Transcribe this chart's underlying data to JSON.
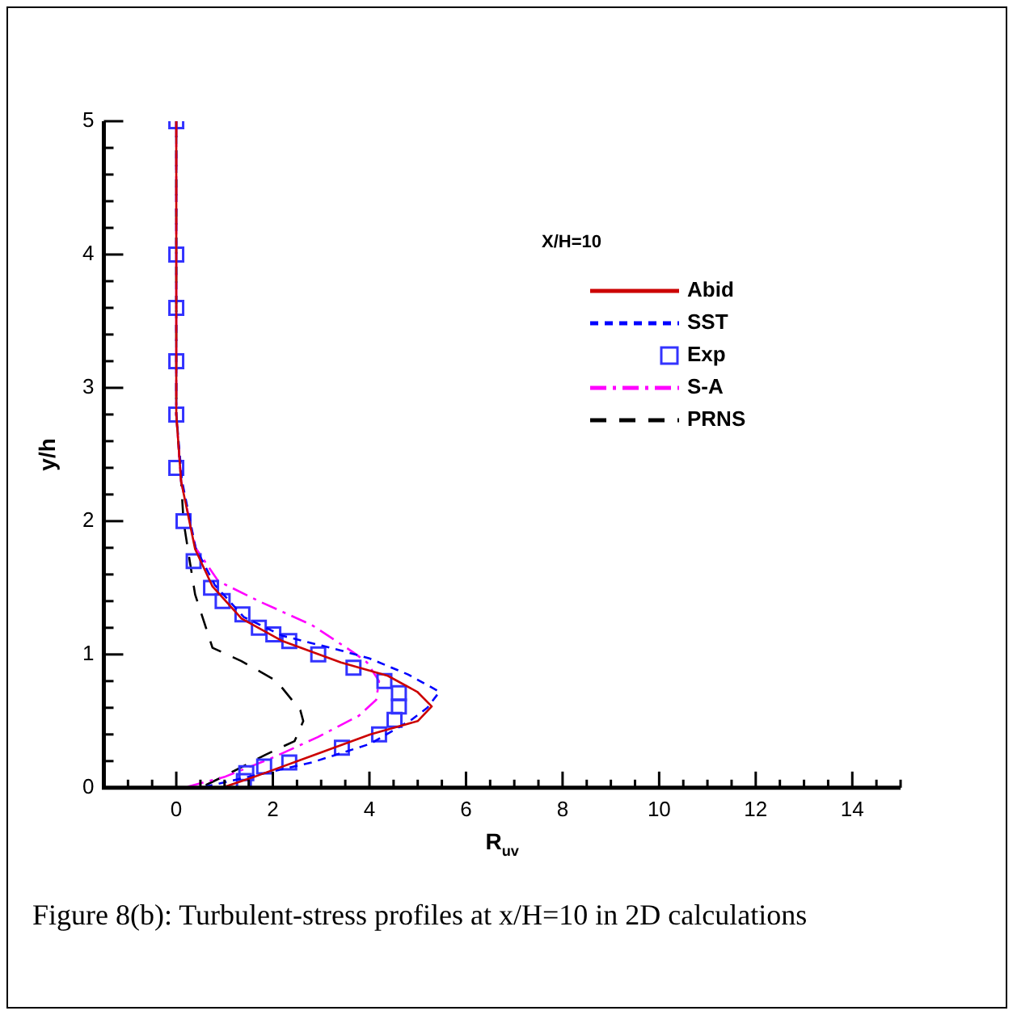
{
  "chart_data": {
    "type": "line",
    "xlabel": "R$_{uv}$",
    "ylabel": "y/h",
    "legend_title": "X/H=10",
    "legend": "top right",
    "grid": false,
    "marker": "none",
    "xlim": [
      -1.5,
      15
    ],
    "xticks": [
      0,
      2,
      4,
      6,
      8,
      10,
      12,
      14
    ],
    "ylim": [
      0,
      5
    ],
    "yticks": [
      0,
      1,
      2,
      3,
      4,
      5
    ],
    "series": [
      {
        "name": "Abid",
        "type": "line",
        "color": "#cc0000",
        "line_style": "solid",
        "x": [
          0,
          0,
          0.1,
          0.39,
          0.75,
          1.35,
          2.2,
          3.41,
          4.38,
          4.99,
          5.29,
          5.0,
          4.02,
          2.81,
          1.6,
          0.95
        ],
        "values": [
          5,
          2.8,
          2.3,
          1.79,
          1.51,
          1.27,
          1.1,
          0.94,
          0.84,
          0.72,
          0.61,
          0.5,
          0.4,
          0.24,
          0.08,
          0
        ]
      },
      {
        "name": "SST",
        "type": "line",
        "color": "#0000ff",
        "line_style": "dashed",
        "x": [
          0,
          0,
          0.12,
          0.4,
          0.8,
          1.4,
          2.2,
          3.41,
          4.0,
          4.8,
          5.45,
          5.2,
          4.87,
          4.02,
          2.81,
          1.35,
          0.5
        ],
        "values": [
          5,
          2.8,
          2.3,
          1.8,
          1.52,
          1.28,
          1.14,
          1.03,
          0.97,
          0.85,
          0.72,
          0.6,
          0.51,
          0.33,
          0.19,
          0.07,
          0
        ]
      },
      {
        "name": "Exp",
        "type": "scatter",
        "color": "#3333ff",
        "marker": "square",
        "x": [
          0,
          0,
          0,
          0,
          0,
          0,
          0.15,
          0.36,
          0.72,
          0.96,
          1.37,
          1.71,
          2.01,
          2.34,
          2.94,
          3.67,
          4.31,
          4.61,
          4.61,
          4.52,
          4.2,
          3.43,
          2.34,
          1.82,
          1.45,
          1.4
        ],
        "values": [
          5,
          4,
          3.6,
          3.2,
          2.8,
          2.4,
          2.0,
          1.7,
          1.5,
          1.4,
          1.3,
          1.2,
          1.15,
          1.1,
          1.0,
          0.9,
          0.8,
          0.71,
          0.61,
          0.51,
          0.4,
          0.3,
          0.19,
          0.16,
          0.11,
          0.05
        ]
      },
      {
        "name": "S-A",
        "type": "line",
        "color": "#ff00ff",
        "line_style": "dashdot",
        "x": [
          0,
          0,
          0.1,
          0.4,
          0.87,
          1.71,
          2.81,
          3.65,
          3.95,
          4.2,
          4.14,
          3.78,
          2.93,
          1.96,
          0.99,
          0.15
        ],
        "values": [
          5,
          2.8,
          2.3,
          1.8,
          1.55,
          1.4,
          1.22,
          1.02,
          0.94,
          0.8,
          0.66,
          0.54,
          0.38,
          0.22,
          0.08,
          0
        ]
      },
      {
        "name": "PRNS",
        "type": "line",
        "color": "#000000",
        "line_style": "longdash",
        "x": [
          0,
          0,
          0.1,
          0.15,
          0.27,
          0.39,
          0.75,
          1.35,
          2.08,
          2.57,
          2.63,
          2.45,
          1.86,
          0.95,
          0.5
        ],
        "values": [
          5,
          2.8,
          2.3,
          2.0,
          1.72,
          1.45,
          1.05,
          0.95,
          0.8,
          0.58,
          0.5,
          0.35,
          0.25,
          0.08,
          0
        ]
      }
    ],
    "annotations": [
      "Figure 8(b): Turbulent-stress profiles at x/H=10 in 2D calculations"
    ]
  }
}
